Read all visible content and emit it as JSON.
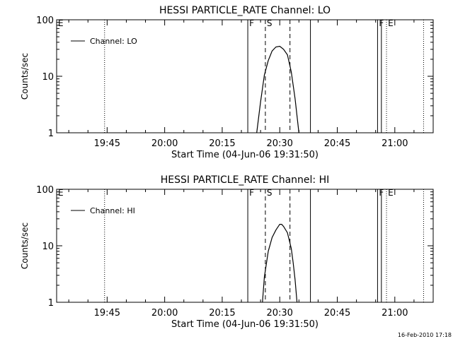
{
  "footer": {
    "date_stamp": "16-Feb-2010 17:18"
  },
  "chart_data": [
    {
      "type": "line",
      "title": "HESSI PARTICLE_RATE Channel: LO",
      "xlabel": "Start Time (04-Jun-06 19:31:50)",
      "ylabel": "Counts/sec",
      "yscale": "log",
      "ylim": [
        1,
        100
      ],
      "xlim": [
        "19:31:50",
        "21:10:00"
      ],
      "x_ticks": [
        "19:45",
        "20:00",
        "20:15",
        "20:30",
        "20:45",
        "21:00"
      ],
      "y_ticks": [
        "1",
        "10",
        "100"
      ],
      "grid": false,
      "legend_position": "top-left",
      "series": [
        {
          "name": "Channel: LO",
          "x": [
            "20:24:00",
            "20:25:00",
            "20:26:00",
            "20:27:00",
            "20:28:00",
            "20:29:00",
            "20:30:00",
            "20:30:30",
            "20:31:00",
            "20:32:00",
            "20:33:00",
            "20:34:00",
            "20:34:30",
            "20:35:00"
          ],
          "y": [
            1,
            3.5,
            10.5,
            19,
            28,
            33,
            34,
            32,
            30,
            24,
            12,
            4,
            2,
            1
          ]
        }
      ],
      "markers": [
        {
          "label": "E",
          "time": "19:31:50",
          "style": "solid"
        },
        {
          "label": "",
          "time": "19:44:20",
          "style": "dotted"
        },
        {
          "label": "F",
          "time": "20:21:40",
          "style": "solid"
        },
        {
          "label": "S",
          "time": "20:26:15",
          "style": "dashed"
        },
        {
          "label": "",
          "time": "20:32:40",
          "style": "dashed"
        },
        {
          "label": "",
          "time": "20:38:00",
          "style": "solid"
        },
        {
          "label": "F",
          "time": "20:55:30",
          "style": "solid"
        },
        {
          "label": "",
          "time": "20:56:30",
          "style": "solid"
        },
        {
          "label": "E",
          "time": "20:57:50",
          "style": "dotted"
        },
        {
          "label": "",
          "time": "21:07:30",
          "style": "dotted"
        }
      ]
    },
    {
      "type": "line",
      "title": "HESSI PARTICLE_RATE Channel: HI",
      "xlabel": "Start Time (04-Jun-06 19:31:50)",
      "ylabel": "Counts/sec",
      "yscale": "log",
      "ylim": [
        1,
        100
      ],
      "xlim": [
        "19:31:50",
        "21:10:00"
      ],
      "x_ticks": [
        "19:45",
        "20:00",
        "20:15",
        "20:30",
        "20:45",
        "21:00"
      ],
      "y_ticks": [
        "1",
        "10",
        "100"
      ],
      "grid": false,
      "legend_position": "top-left",
      "series": [
        {
          "name": "Channel: HI",
          "x": [
            "20:25:30",
            "20:26:00",
            "20:27:00",
            "20:28:00",
            "20:29:00",
            "20:30:00",
            "20:30:30",
            "20:31:00",
            "20:32:00",
            "20:33:00",
            "20:33:30",
            "20:34:00",
            "20:34:30"
          ],
          "y": [
            1,
            2.8,
            8,
            14,
            19,
            24,
            24,
            22,
            17,
            9,
            5,
            2.5,
            1
          ]
        }
      ],
      "markers": [
        {
          "label": "E",
          "time": "19:31:50",
          "style": "solid"
        },
        {
          "label": "",
          "time": "19:44:20",
          "style": "dotted"
        },
        {
          "label": "F",
          "time": "20:21:40",
          "style": "solid"
        },
        {
          "label": "S",
          "time": "20:26:15",
          "style": "dashed"
        },
        {
          "label": "",
          "time": "20:32:40",
          "style": "dashed"
        },
        {
          "label": "",
          "time": "20:38:00",
          "style": "solid"
        },
        {
          "label": "F",
          "time": "20:55:30",
          "style": "solid"
        },
        {
          "label": "",
          "time": "20:56:30",
          "style": "solid"
        },
        {
          "label": "E",
          "time": "20:57:50",
          "style": "dotted"
        },
        {
          "label": "",
          "time": "21:07:30",
          "style": "dotted"
        }
      ]
    }
  ]
}
